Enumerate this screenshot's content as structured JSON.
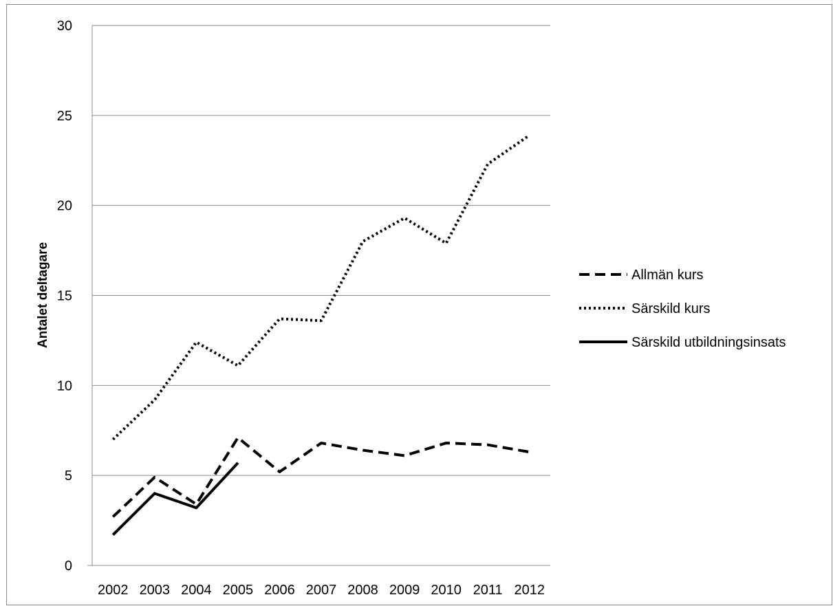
{
  "chart_data": {
    "type": "line",
    "title": "",
    "xlabel": "",
    "ylabel": "Antalet deltagare",
    "ylim": [
      0,
      30
    ],
    "y_ticks": [
      0,
      5,
      10,
      15,
      20,
      25,
      30
    ],
    "categories": [
      "2002",
      "2003",
      "2004",
      "2005",
      "2006",
      "2007",
      "2008",
      "2009",
      "2010",
      "2011",
      "2012"
    ],
    "grid": "horizontal",
    "legend_position": "right",
    "series": [
      {
        "name": "Allmän kurs",
        "style": "dashed",
        "color": "#000000",
        "values": [
          2.7,
          4.9,
          3.4,
          7.1,
          5.2,
          6.8,
          6.4,
          6.1,
          6.8,
          6.7,
          6.3
        ]
      },
      {
        "name": "Särskild kurs",
        "style": "dotted",
        "color": "#000000",
        "values": [
          7.0,
          9.2,
          12.4,
          11.1,
          13.7,
          13.6,
          18.0,
          19.3,
          17.9,
          22.3,
          23.9
        ]
      },
      {
        "name": "Särskild utbildningsinsats",
        "style": "solid",
        "color": "#000000",
        "values": [
          1.7,
          4.0,
          3.2,
          5.7,
          null,
          null,
          null,
          null,
          null,
          null,
          null
        ]
      }
    ]
  }
}
